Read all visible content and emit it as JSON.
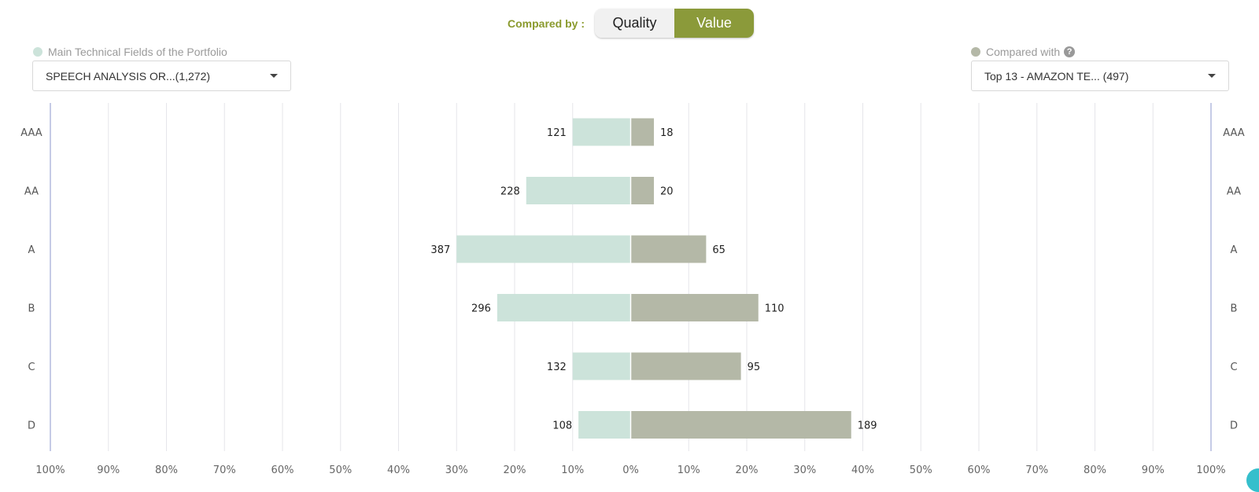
{
  "header": {
    "compared_by_label": "Compared by :",
    "toggle": {
      "quality": "Quality",
      "value": "Value",
      "active": "Value"
    }
  },
  "left": {
    "legend": "Main Technical Fields of the Portfolio",
    "select_value": "SPEECH ANALYSIS OR...(1,272)",
    "color": "#cce3da"
  },
  "right": {
    "legend": "Compared with",
    "select_value": "Top 13 - AMAZON TE... (497)",
    "color": "#b4b8a7"
  },
  "chart_data": {
    "type": "bar",
    "orientation": "horizontal-diverging",
    "categories": [
      "AAA",
      "AA",
      "A",
      "B",
      "C",
      "D"
    ],
    "series": [
      {
        "side": "left",
        "values_percent": [
          10,
          18,
          30,
          23,
          10,
          9
        ],
        "data_labels": [
          "121",
          "228",
          "387",
          "296",
          "132",
          "108"
        ],
        "color": "#cce3da"
      },
      {
        "side": "right",
        "values_percent": [
          4,
          4,
          13,
          22,
          19,
          38
        ],
        "data_labels": [
          "18",
          "20",
          "65",
          "110",
          "95",
          "189"
        ],
        "color": "#b4b8a7"
      }
    ],
    "x_ticks": [
      "100%",
      "90%",
      "80%",
      "70%",
      "60%",
      "50%",
      "40%",
      "30%",
      "20%",
      "10%",
      "0%",
      "10%",
      "20%",
      "30%",
      "40%",
      "50%",
      "60%",
      "70%",
      "80%",
      "90%",
      "100%"
    ],
    "xlim": [
      -100,
      100
    ],
    "grid": true
  }
}
